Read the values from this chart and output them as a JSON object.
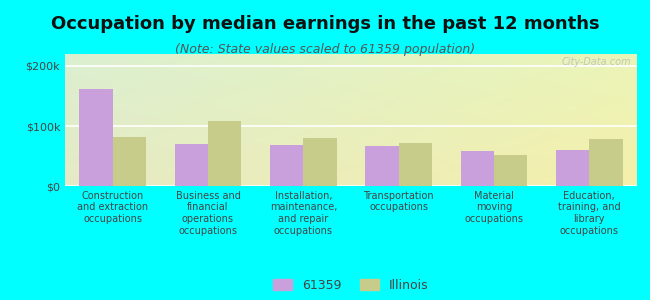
{
  "title": "Occupation by median earnings in the past 12 months",
  "subtitle": "(Note: State values scaled to 61359 population)",
  "categories": [
    "Construction\nand extraction\noccupations",
    "Business and\nfinancial\noperations\noccupations",
    "Installation,\nmaintenance,\nand repair\noccupations",
    "Transportation\noccupations",
    "Material\nmoving\noccupations",
    "Education,\ntraining, and\nlibrary\noccupations"
  ],
  "values_61359": [
    162000,
    70000,
    68000,
    67000,
    58000,
    60000
  ],
  "values_illinois": [
    82000,
    108000,
    80000,
    72000,
    52000,
    78000
  ],
  "color_61359": "#c9a0dc",
  "color_illinois": "#c8cc8a",
  "legend_61359": "61359",
  "legend_illinois": "Illinois",
  "ylim": [
    0,
    220000
  ],
  "yticks": [
    0,
    100000,
    200000
  ],
  "ytick_labels": [
    "$0",
    "$100k",
    "$200k"
  ],
  "bg_color_left": "#d8f0c8",
  "bg_color_right": "#f0f5d8",
  "outer_background": "#00ffff",
  "bar_width": 0.35,
  "title_fontsize": 13,
  "subtitle_fontsize": 9,
  "tick_fontsize": 8,
  "label_fontsize": 7,
  "legend_fontsize": 9,
  "watermark_text": "City-Data.com"
}
